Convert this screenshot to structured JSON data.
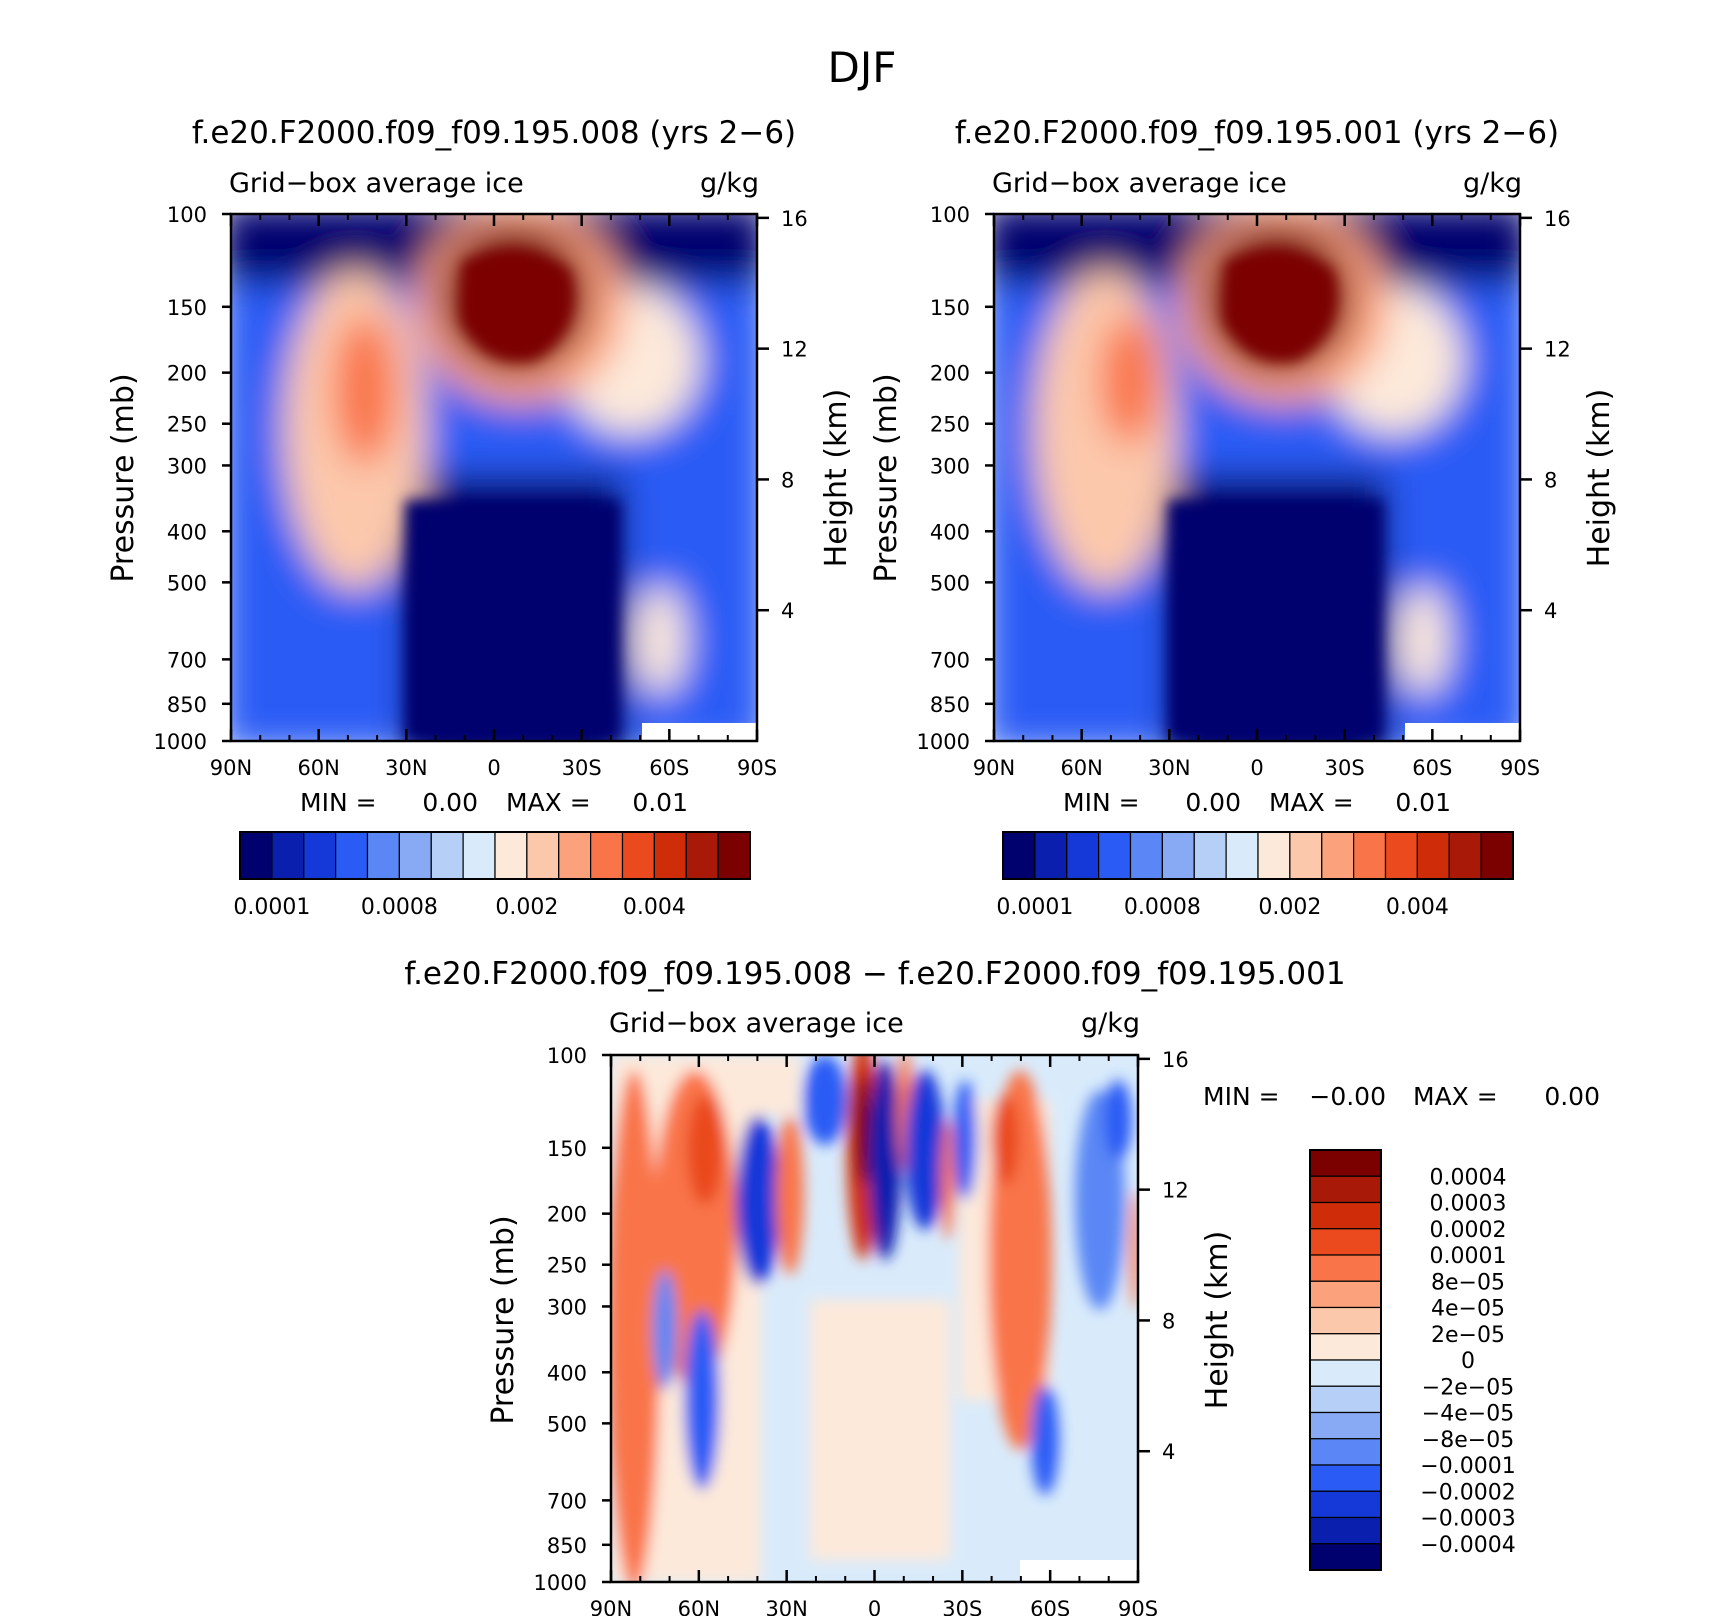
{
  "figure_title": "DJF",
  "chart_data": [
    {
      "type": "heatmap",
      "title": "f.e20.F2000.f09_f09.195.008 (yrs 2−6)",
      "subtitle_left": "Grid−box average ice",
      "subtitle_right": "g/kg",
      "ylabel": "Pressure (mb)",
      "ylabel_right": "Height (km)",
      "x_ticks": [
        "90N",
        "60N",
        "30N",
        "0",
        "30S",
        "60S",
        "90S"
      ],
      "y_ticks": [
        "100",
        "150",
        "200",
        "250",
        "300",
        "400",
        "500",
        "700",
        "850",
        "1000"
      ],
      "y_ticks_right": [
        "16",
        "12",
        "8",
        "4"
      ],
      "y_scale": "log",
      "min_max_text": {
        "min_label": "MIN =",
        "min": "0.00",
        "max_label": "MAX =",
        "max": "0.01"
      },
      "colorbar": {
        "orientation": "horizontal",
        "colors": [
          "#00006e",
          "#0a1fae",
          "#1538d9",
          "#2a5cf5",
          "#5a87f5",
          "#88aaf5",
          "#b5cff7",
          "#d9ebfb",
          "#fde9da",
          "#fcc8ac",
          "#fba27c",
          "#f97448",
          "#ea4a1d",
          "#cf2d0a",
          "#a91908",
          "#7b0000"
        ],
        "tick_labels": [
          "0.0001",
          "0.0008",
          "0.002",
          "0.004"
        ]
      },
      "features": [
        {
          "lat": 10,
          "p": 250,
          "level": 15,
          "note": "tropical upper-troposphere maximum"
        },
        {
          "lat": 45,
          "p": 400,
          "level": 11,
          "note": "northern mid-latitude band"
        },
        {
          "lat": -45,
          "p": 350,
          "level": 9,
          "note": "southern mid-latitude band"
        },
        {
          "lat": -62,
          "p": 800,
          "level": 8,
          "note": "southern low-level local maximum"
        }
      ]
    },
    {
      "type": "heatmap",
      "title": "f.e20.F2000.f09_f09.195.001 (yrs 2−6)",
      "subtitle_left": "Grid−box average ice",
      "subtitle_right": "g/kg",
      "ylabel": "Pressure (mb)",
      "ylabel_right": "Height (km)",
      "x_ticks": [
        "90N",
        "60N",
        "30N",
        "0",
        "30S",
        "60S",
        "90S"
      ],
      "y_ticks": [
        "100",
        "150",
        "200",
        "250",
        "300",
        "400",
        "500",
        "700",
        "850",
        "1000"
      ],
      "y_ticks_right": [
        "16",
        "12",
        "8",
        "4"
      ],
      "y_scale": "log",
      "min_max_text": {
        "min_label": "MIN =",
        "min": "0.00",
        "max_label": "MAX =",
        "max": "0.01"
      },
      "colorbar": {
        "orientation": "horizontal",
        "colors": [
          "#00006e",
          "#0a1fae",
          "#1538d9",
          "#2a5cf5",
          "#5a87f5",
          "#88aaf5",
          "#b5cff7",
          "#d9ebfb",
          "#fde9da",
          "#fcc8ac",
          "#fba27c",
          "#f97448",
          "#ea4a1d",
          "#cf2d0a",
          "#a91908",
          "#7b0000"
        ],
        "tick_labels": [
          "0.0001",
          "0.0008",
          "0.002",
          "0.004"
        ]
      },
      "features": [
        {
          "lat": 10,
          "p": 250,
          "level": 15,
          "note": "tropical upper-troposphere maximum"
        },
        {
          "lat": 42,
          "p": 380,
          "level": 11,
          "note": "northern mid-latitude band"
        },
        {
          "lat": -45,
          "p": 350,
          "level": 9,
          "note": "southern mid-latitude band"
        },
        {
          "lat": -62,
          "p": 800,
          "level": 8,
          "note": "southern low-level local maximum"
        }
      ]
    },
    {
      "type": "heatmap",
      "title": "f.e20.F2000.f09_f09.195.008 − f.e20.F2000.f09_f09.195.001",
      "subtitle_left": "Grid−box average ice",
      "subtitle_right": "g/kg",
      "ylabel": "Pressure (mb)",
      "ylabel_right": "Height (km)",
      "x_ticks": [
        "90N",
        "60N",
        "30N",
        "0",
        "30S",
        "60S",
        "90S"
      ],
      "y_ticks": [
        "100",
        "150",
        "200",
        "250",
        "300",
        "400",
        "500",
        "700",
        "850",
        "1000"
      ],
      "y_ticks_right": [
        "16",
        "12",
        "8",
        "4"
      ],
      "y_scale": "log",
      "min_max_text": {
        "min_label": "MIN =",
        "min": "−0.00",
        "max_label": "MAX =",
        "max": "0.00"
      },
      "colorbar": {
        "orientation": "vertical",
        "colors": [
          "#00006e",
          "#0a1fae",
          "#1538d9",
          "#2a5cf5",
          "#5a87f5",
          "#88aaf5",
          "#b5cff7",
          "#d9ebfb",
          "#fde9da",
          "#fcc8ac",
          "#fba27c",
          "#f97448",
          "#ea4a1d",
          "#cf2d0a",
          "#a91908",
          "#7b0000"
        ],
        "tick_labels": [
          "0.0004",
          "0.0003",
          "0.0002",
          "0.0001",
          "8e−05",
          "4e−05",
          "2e−05",
          "0",
          "−2e−05",
          "−4e−05",
          "−8e−05",
          "−0.0001",
          "−0.0002",
          "−0.0003",
          "−0.0004"
        ]
      },
      "features": [
        {
          "lat": 80,
          "p": 600,
          "sign": "positive"
        },
        {
          "lat": 62,
          "p": 350,
          "sign": "positive"
        },
        {
          "lat": 56,
          "p": 750,
          "sign": "negative"
        },
        {
          "lat": 38,
          "p": 400,
          "sign": "negative"
        },
        {
          "lat": 28,
          "p": 300,
          "sign": "positive"
        },
        {
          "lat": 2,
          "p": 250,
          "sign": "positive"
        },
        {
          "lat": -4,
          "p": 350,
          "sign": "negative"
        },
        {
          "lat": -18,
          "p": 400,
          "sign": "negative"
        },
        {
          "lat": -45,
          "p": 500,
          "sign": "positive"
        },
        {
          "lat": -60,
          "p": 800,
          "sign": "negative"
        }
      ]
    }
  ]
}
